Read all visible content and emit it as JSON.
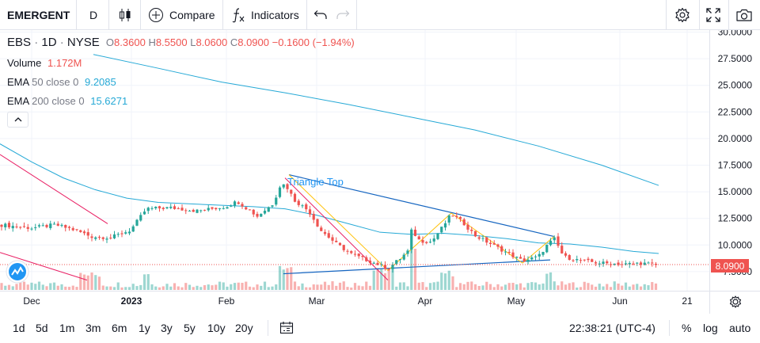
{
  "toolbar": {
    "symbol": "EMERGENT",
    "interval": "D",
    "compare_label": "Compare",
    "indicators_label": "Indicators"
  },
  "legend": {
    "ticker": "EBS",
    "interval": "1D",
    "exchange": "NYSE",
    "open_label": "O",
    "open": "8.3600",
    "high_label": "H",
    "high": "8.5500",
    "low_label": "L",
    "low": "8.0600",
    "close_label": "C",
    "close": "8.0900",
    "change": "−0.1600 (−1.94%)",
    "volume_label": "Volume",
    "volume": "1.172M",
    "ema50_label": "EMA",
    "ema50_params": "50 close 0",
    "ema50_value": "9.2085",
    "ema200_label": "EMA",
    "ema200_params": "200 close 0",
    "ema200_value": "15.6271"
  },
  "colors": {
    "up": "#26a69a",
    "down": "#ef5350",
    "ema": "#26a9d6",
    "accent": "#2196f3"
  },
  "current_price_tag": "8.0900",
  "chart_data": {
    "type": "candlestick",
    "y_ticks": [
      "30.0000",
      "27.5000",
      "25.0000",
      "22.5000",
      "20.0000",
      "17.5000",
      "15.0000",
      "12.5000",
      "10.0000",
      "7.5000"
    ],
    "ylim": [
      6.5,
      30.2
    ],
    "x_ticks": [
      "Dec",
      "2023",
      "Feb",
      "Mar",
      "Apr",
      "May",
      "Jun",
      "21"
    ],
    "pattern_label": "Triangle Top",
    "last_price": 8.09
  },
  "bottombar": {
    "ranges": [
      "1d",
      "5d",
      "1m",
      "3m",
      "6m",
      "1y",
      "3y",
      "5y",
      "10y",
      "20y"
    ],
    "time": "22:38:21 (UTC-4)",
    "percent": "%",
    "log": "log",
    "auto": "auto"
  }
}
